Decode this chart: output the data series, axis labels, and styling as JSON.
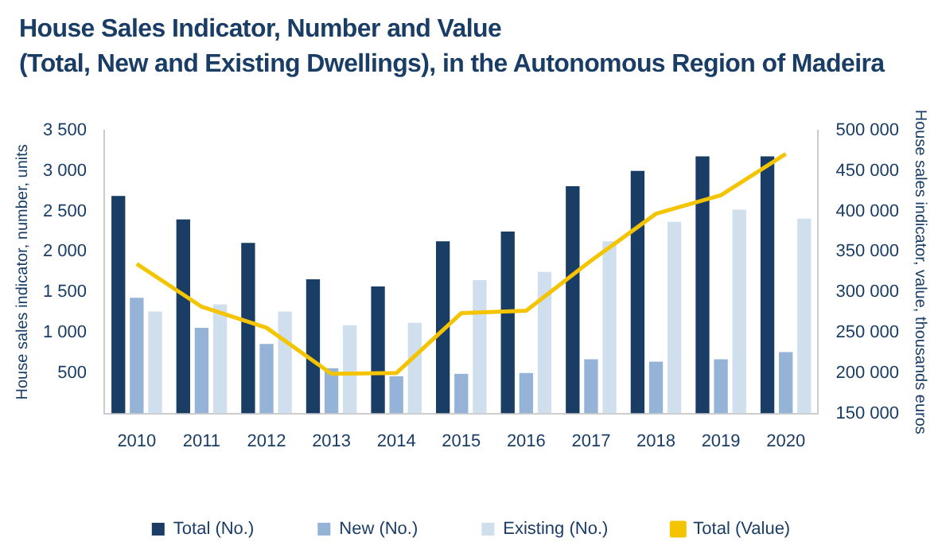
{
  "chart_data": {
    "type": "bar",
    "title": "House Sales Indicator, Number and Value\n(Total, New and Existing Dwellings), in the Autonomous Region of Madeira",
    "ylabel": "House sales indicator, number, units",
    "y2label": "House sales indicator, value, thousands euros",
    "categories": [
      "2010",
      "2011",
      "2012",
      "2013",
      "2014",
      "2015",
      "2016",
      "2017",
      "2018",
      "2019",
      "2020"
    ],
    "series": [
      {
        "name": "Total (No.)",
        "color": "#1a3d66",
        "values": [
          2690,
          2400,
          2110,
          1660,
          1570,
          2130,
          2250,
          2810,
          3000,
          3180,
          3180
        ]
      },
      {
        "name": "New (No.)",
        "color": "#94b3d7",
        "values": [
          1430,
          1060,
          860,
          560,
          460,
          490,
          500,
          670,
          640,
          670,
          760
        ]
      },
      {
        "name": "Existing (No.)",
        "color": "#d0dfed",
        "values": [
          1260,
          1350,
          1260,
          1090,
          1120,
          1650,
          1750,
          2130,
          2370,
          2520,
          2410
        ]
      },
      {
        "name": "Total (Value)",
        "type": "line",
        "axis": "y2",
        "color": "#f5c400",
        "values": [
          335000,
          282000,
          256000,
          199000,
          200000,
          274000,
          277000,
          339000,
          397000,
          420000,
          471000
        ]
      }
    ],
    "ylim": [
      0,
      3500
    ],
    "yticks": [
      {
        "value": 0,
        "label": null
      },
      {
        "value": 500,
        "label": "500"
      },
      {
        "value": 1000,
        "label": "1 000"
      },
      {
        "value": 1500,
        "label": "1 500"
      },
      {
        "value": 2000,
        "label": "2 000"
      },
      {
        "value": 2500,
        "label": "2 500"
      },
      {
        "value": 3000,
        "label": "3 000"
      },
      {
        "value": 3500,
        "label": "3 500"
      }
    ],
    "y2lim": [
      150000,
      500000
    ],
    "y2ticks": [
      {
        "value": 150000,
        "label": "150 000"
      },
      {
        "value": 200000,
        "label": "200 000"
      },
      {
        "value": 250000,
        "label": "250 000"
      },
      {
        "value": 300000,
        "label": "300 000"
      },
      {
        "value": 350000,
        "label": "350 000"
      },
      {
        "value": 400000,
        "label": "400 000"
      },
      {
        "value": 450000,
        "label": "450 000"
      },
      {
        "value": 500000,
        "label": "500 000"
      }
    ],
    "grid": false,
    "legend": "bottom",
    "marker": "none"
  }
}
